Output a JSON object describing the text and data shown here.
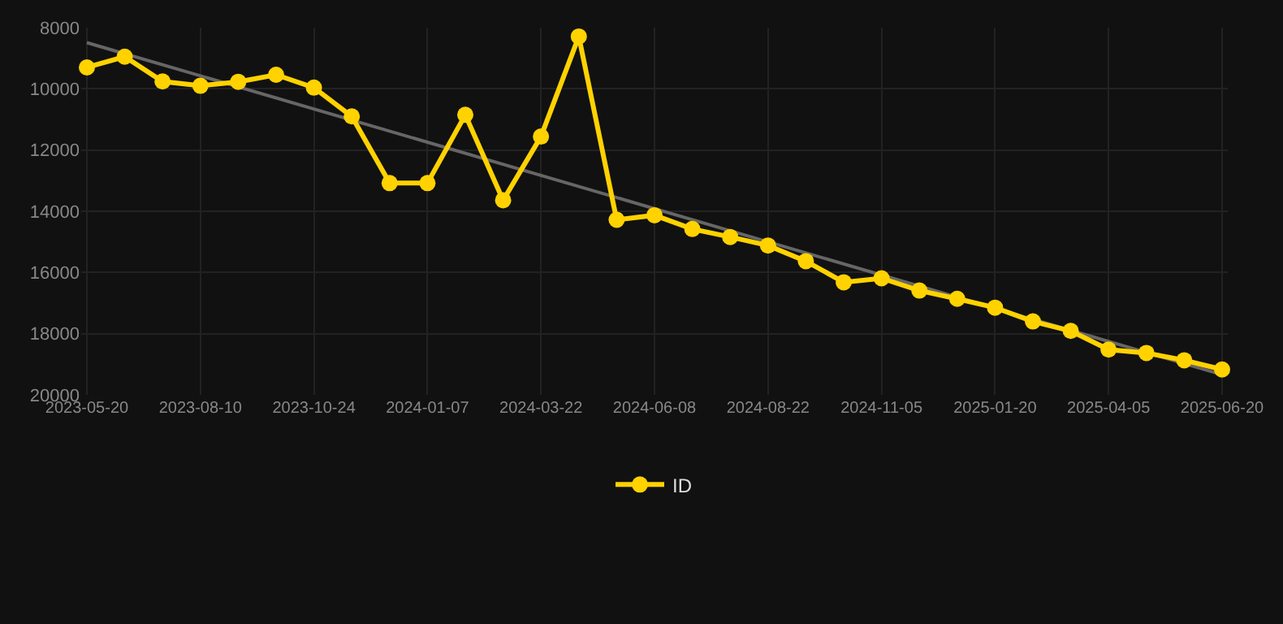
{
  "chart_data": {
    "type": "line",
    "categories": [
      "2023-05-20",
      null,
      null,
      "2023-08-10",
      null,
      null,
      "2023-10-24",
      null,
      null,
      "2024-01-07",
      null,
      null,
      "2024-03-22",
      null,
      null,
      "2024-06-08",
      null,
      null,
      "2024-08-22",
      null,
      null,
      "2024-11-05",
      null,
      null,
      "2025-01-20",
      null,
      null,
      "2025-04-05",
      null,
      null,
      "2025-06-20"
    ],
    "series": [
      {
        "name": "ID",
        "color": "#ffd200",
        "marker": "circle",
        "values": [
          9300,
          8950,
          9760,
          9900,
          9770,
          9540,
          9960,
          10900,
          13080,
          13080,
          10850,
          13640,
          11560,
          8290,
          14280,
          14130,
          14580,
          14840,
          15120,
          15630,
          16320,
          16190,
          16590,
          16860,
          17150,
          17600,
          17910,
          18520,
          18630,
          18870,
          19170
        ]
      },
      {
        "color": "#666666",
        "marker": "none",
        "values": [
          8490,
          null,
          null,
          null,
          null,
          null,
          null,
          null,
          null,
          null,
          null,
          null,
          null,
          null,
          null,
          null,
          null,
          null,
          null,
          null,
          null,
          null,
          null,
          null,
          null,
          null,
          null,
          null,
          null,
          null,
          19340
        ]
      }
    ],
    "ylim": [
      20000,
      8000
    ],
    "yticks": [
      8000,
      10000,
      12000,
      14000,
      16000,
      18000,
      20000
    ],
    "grid": true,
    "legend": "bottom",
    "line_style": "solid"
  }
}
